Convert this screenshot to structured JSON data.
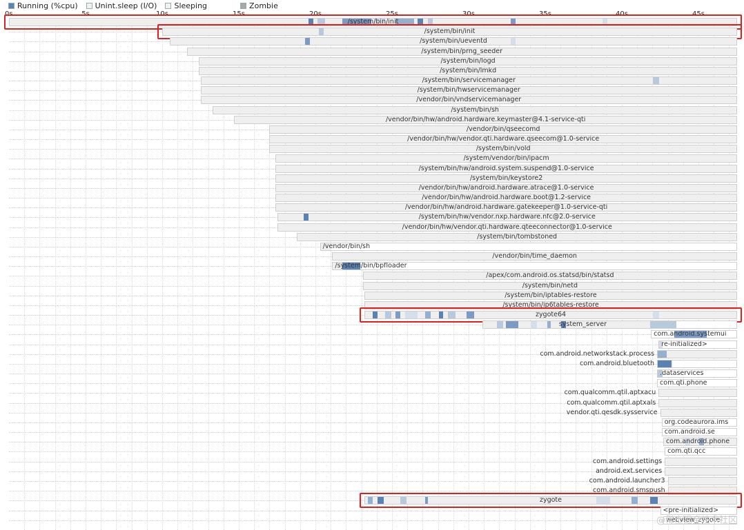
{
  "legend": [
    {
      "label": "Running (%cpu)",
      "color": "#5b82b4"
    },
    {
      "label": "Unint.sleep (I/O)",
      "color": "#f2f2f2"
    },
    {
      "label": "Sleeping",
      "color": "#f2f2f2"
    },
    {
      "label": "Zombie",
      "color": "#a8a8a8"
    }
  ],
  "axis_ticks": [
    "0s",
    "5s",
    "10s",
    "15s",
    "20s",
    "25s",
    "30s",
    "35s",
    "40s",
    "45s"
  ],
  "rows": [
    {
      "label": "/system/bin/init",
      "start": 0,
      "end": 47.6,
      "running": [
        [
          19.5,
          19.8
        ],
        [
          20.1,
          20.6
        ],
        [
          21.7,
          23.6
        ],
        [
          23.8,
          24.5
        ],
        [
          25.2,
          26.4
        ],
        [
          26.6,
          27.0
        ],
        [
          27.3,
          27.6
        ],
        [
          32.7,
          33.0
        ],
        [
          38.7,
          39.0
        ]
      ],
      "highlight": true
    },
    {
      "label": "/system/bin/init",
      "start": 10.0,
      "end": 47.6,
      "running": [
        [
          20.2,
          20.5
        ]
      ],
      "highlight": true
    },
    {
      "label": "/system/bin/ueventd",
      "start": 10.5,
      "end": 47.6,
      "running": [
        [
          19.3,
          19.6
        ],
        [
          32.7,
          33.0
        ]
      ]
    },
    {
      "label": "/system/bin/prng_seeder",
      "start": 11.6,
      "end": 47.6,
      "running": []
    },
    {
      "label": "/system/bin/logd",
      "start": 12.4,
      "end": 47.6,
      "running": []
    },
    {
      "label": "/system/bin/lmkd",
      "start": 12.4,
      "end": 47.6,
      "running": []
    },
    {
      "label": "/system/bin/servicemanager",
      "start": 12.5,
      "end": 47.6,
      "running": [
        [
          42.0,
          42.4
        ]
      ]
    },
    {
      "label": "/system/bin/hwservicemanager",
      "start": 12.5,
      "end": 47.6,
      "running": []
    },
    {
      "label": "/vendor/bin/vndservicemanager",
      "start": 12.5,
      "end": 47.6,
      "running": []
    },
    {
      "label": "/system/bin/sh",
      "start": 13.3,
      "end": 47.6,
      "running": []
    },
    {
      "label": "/vendor/bin/hw/android.hardware.keymaster@4.1-service-qti",
      "start": 14.7,
      "end": 47.6,
      "running": []
    },
    {
      "label": "/vendor/bin/qseecomd",
      "start": 17.0,
      "end": 47.6,
      "running": []
    },
    {
      "label": "/vendor/bin/hw/vendor.qti.hardware.qseecom@1.0-service",
      "start": 17.0,
      "end": 47.6,
      "running": []
    },
    {
      "label": "/system/bin/vold",
      "start": 17.0,
      "end": 47.6,
      "running": []
    },
    {
      "label": "/system/vendor/bin/ipacm",
      "start": 17.4,
      "end": 47.6,
      "running": []
    },
    {
      "label": "/system/bin/hw/android.system.suspend@1.0-service",
      "start": 17.4,
      "end": 47.6,
      "running": []
    },
    {
      "label": "/system/bin/keystore2",
      "start": 17.4,
      "end": 47.6,
      "running": []
    },
    {
      "label": "/vendor/bin/hw/android.hardware.atrace@1.0-service",
      "start": 17.4,
      "end": 47.6,
      "running": []
    },
    {
      "label": "/vendor/bin/hw/android.hardware.boot@1.2-service",
      "start": 17.4,
      "end": 47.6,
      "running": []
    },
    {
      "label": "/vendor/bin/hw/android.hardware.gatekeeper@1.0-service-qti",
      "start": 17.4,
      "end": 47.6,
      "running": []
    },
    {
      "label": "/system/bin/hw/vendor.nxp.hardware.nfc@2.0-service",
      "start": 17.5,
      "end": 47.6,
      "running": [
        [
          19.2,
          19.5
        ]
      ]
    },
    {
      "label": "/vendor/bin/hw/vendor.qti.hardware.qteeconnector@1.0-service",
      "start": 17.5,
      "end": 47.6,
      "running": []
    },
    {
      "label": "/system/bin/tombstoned",
      "start": 18.8,
      "end": 47.6,
      "running": []
    },
    {
      "label": "/vendor/bin/sh",
      "start": 20.3,
      "end": 47.6,
      "running": [],
      "white": true,
      "align": "left",
      "bar_end": 21.0
    },
    {
      "label": "/vendor/bin/time_daemon",
      "start": 21.1,
      "end": 47.6,
      "running": []
    },
    {
      "label": "/system/bin/bpfloader",
      "start": 21.1,
      "end": 47.6,
      "running": [
        [
          21.7,
          22.9
        ]
      ],
      "white": true,
      "align": "left",
      "bar_end": 23.0
    },
    {
      "label": "/apex/com.android.os.statsd/bin/statsd",
      "start": 23.1,
      "end": 47.6,
      "running": []
    },
    {
      "label": "/system/bin/netd",
      "start": 23.1,
      "end": 47.6,
      "running": []
    },
    {
      "label": "/system/bin/iptables-restore",
      "start": 23.2,
      "end": 47.6,
      "running": []
    },
    {
      "label": "/system/bin/ip6tables-restore",
      "start": 23.2,
      "end": 47.6,
      "running": []
    },
    {
      "label": "zygote64",
      "start": 23.2,
      "end": 47.6,
      "running": [
        [
          23.7,
          24.0
        ],
        [
          24.5,
          24.9
        ],
        [
          25.2,
          25.5
        ],
        [
          25.8,
          26.6
        ],
        [
          27.1,
          27.5
        ],
        [
          28.0,
          28.3
        ],
        [
          28.6,
          29.1
        ],
        [
          29.8,
          30.3
        ],
        [
          42.0,
          42.4
        ]
      ],
      "highlight": true
    },
    {
      "label": "system_server",
      "start": 30.9,
      "end": 47.6,
      "running": [
        [
          31.8,
          32.2
        ],
        [
          32.4,
          33.2
        ],
        [
          34.0,
          34.4
        ],
        [
          35.1,
          35.3
        ],
        [
          36.0,
          36.3
        ],
        [
          41.8,
          43.5
        ]
      ],
      "white": true,
      "align": "center_range",
      "bar_end": 43.5
    },
    {
      "label": "com.android.systemui",
      "start": 41.9,
      "end": 47.6,
      "running": [
        [
          43.4,
          45.5
        ]
      ],
      "white": true,
      "align": "left"
    },
    {
      "label": "re-initialized>",
      "start": 42.4,
      "end": 47.6,
      "running": [
        [
          42.4,
          42.6
        ]
      ],
      "white": true,
      "align": "left"
    },
    {
      "label": "com.android.networkstack.process",
      "start": 42.3,
      "end": 47.6,
      "running": [
        [
          42.3,
          42.9
        ]
      ],
      "out": true
    },
    {
      "label": "com.android.bluetooth",
      "start": 42.3,
      "end": 47.6,
      "running": [
        [
          42.3,
          43.2
        ]
      ],
      "out": true,
      "white": true,
      "bar_end": 43.3
    },
    {
      "label": ".dataservices",
      "start": 42.3,
      "end": 47.6,
      "running": [
        [
          42.3,
          42.6
        ]
      ],
      "white": true,
      "align": "left"
    },
    {
      "label": "com.qti.phone",
      "start": 42.3,
      "end": 47.6,
      "running": [],
      "white": true,
      "align": "left"
    },
    {
      "label": "com.qualcomm.qtil.aptxacu",
      "start": 42.4,
      "end": 47.6,
      "running": [],
      "out": true
    },
    {
      "label": "com.qualcomm.qtil.aptxals",
      "start": 42.4,
      "end": 47.6,
      "running": [],
      "out": true
    },
    {
      "label": "vendor.qti.qesdk.sysservice",
      "start": 42.5,
      "end": 47.6,
      "running": [],
      "out": true
    },
    {
      "label": "org.codeaurora.ims",
      "start": 42.6,
      "end": 47.6,
      "running": [],
      "white": true,
      "align": "left"
    },
    {
      "label": "com.android.se",
      "start": 42.6,
      "end": 47.6,
      "running": [],
      "white": true,
      "align": "left"
    },
    {
      "label": "com.android.phone",
      "start": 42.7,
      "end": 47.6,
      "running": [
        [
          44.1,
          44.4
        ],
        [
          45.0,
          45.3
        ]
      ],
      "white": false,
      "align": "left"
    },
    {
      "label": "com.qti.qcc",
      "start": 42.8,
      "end": 47.6,
      "running": [],
      "white": true,
      "align": "left"
    },
    {
      "label": "com.android.settings",
      "start": 42.8,
      "end": 47.6,
      "running": [],
      "out": true
    },
    {
      "label": "android.ext.services",
      "start": 42.8,
      "end": 47.6,
      "running": [],
      "out": true
    },
    {
      "label": "com.android.launcher3",
      "start": 43.0,
      "end": 47.6,
      "running": [],
      "out": true
    },
    {
      "label": "com.android.smspush",
      "start": 43.0,
      "end": 47.6,
      "running": [],
      "out": true
    },
    {
      "label": "zygote",
      "start": 23.2,
      "end": 47.6,
      "running": [
        [
          23.4,
          23.7
        ],
        [
          24.0,
          24.4
        ],
        [
          25.5,
          25.9
        ],
        [
          27.1,
          27.3
        ],
        [
          38.3,
          39.2
        ],
        [
          40.6,
          41.0
        ],
        [
          41.8,
          42.3
        ]
      ],
      "highlight": true
    },
    {
      "label": "<pre-initialized>",
      "start": 42.5,
      "end": 47.6,
      "running": [],
      "white": true,
      "align": "left"
    },
    {
      "label": "webview_zygote",
      "start": 42.7,
      "end": 47.6,
      "running": [],
      "white": true,
      "align": "left"
    }
  ],
  "watermark": "@稀土掘金技术社区"
}
